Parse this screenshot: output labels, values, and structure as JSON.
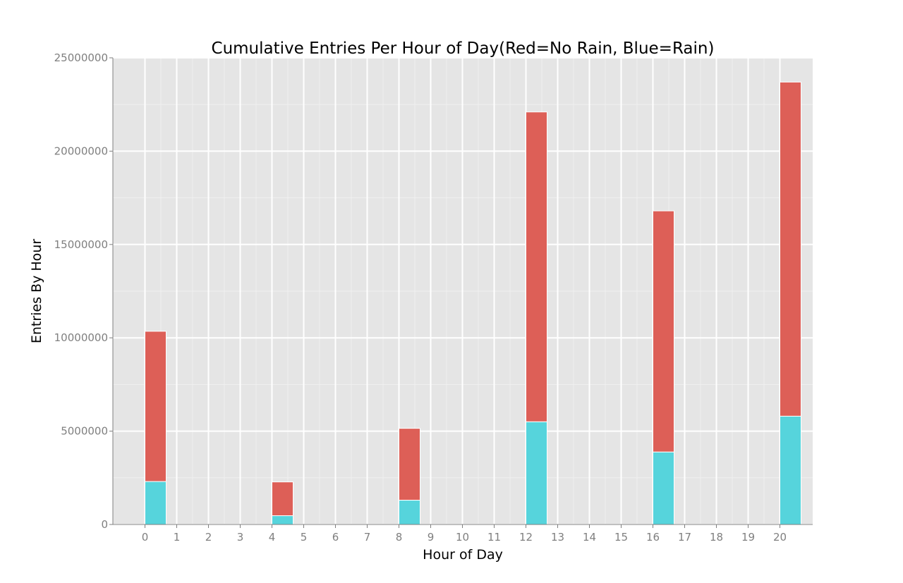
{
  "chart_data": {
    "type": "bar",
    "stacked": true,
    "title": "Cumulative Entries Per Hour of Day(Red=No Rain, Blue=Rain)",
    "xlabel": "Hour of Day",
    "ylabel": "Entries By Hour",
    "xlim": [
      -1,
      21
    ],
    "ylim": [
      0,
      25000000
    ],
    "x_ticks": [
      0,
      1,
      2,
      3,
      4,
      5,
      6,
      7,
      8,
      9,
      10,
      11,
      12,
      13,
      14,
      15,
      16,
      17,
      18,
      19,
      20
    ],
    "y_ticks": [
      0,
      5000000,
      10000000,
      15000000,
      20000000,
      25000000
    ],
    "y_tick_labels": [
      "0",
      "5000000",
      "10000000",
      "15000000",
      "20000000",
      "25000000"
    ],
    "grid": true,
    "bars": [
      {
        "x": 0,
        "rain": 2300000,
        "no_rain": 8050000
      },
      {
        "x": 4,
        "rain": 470000,
        "no_rain": 1810000
      },
      {
        "x": 8,
        "rain": 1300000,
        "no_rain": 3850000
      },
      {
        "x": 12,
        "rain": 5500000,
        "no_rain": 16600000
      },
      {
        "x": 16,
        "rain": 3880000,
        "no_rain": 12920000
      },
      {
        "x": 20,
        "rain": 5800000,
        "no_rain": 17900000
      }
    ],
    "colors": {
      "no_rain": "#dd5f57",
      "rain": "#56d4dc",
      "panel": "#e5e5e5",
      "grid_major": "#ffffff",
      "grid_minor": "#f0f0f0"
    }
  }
}
